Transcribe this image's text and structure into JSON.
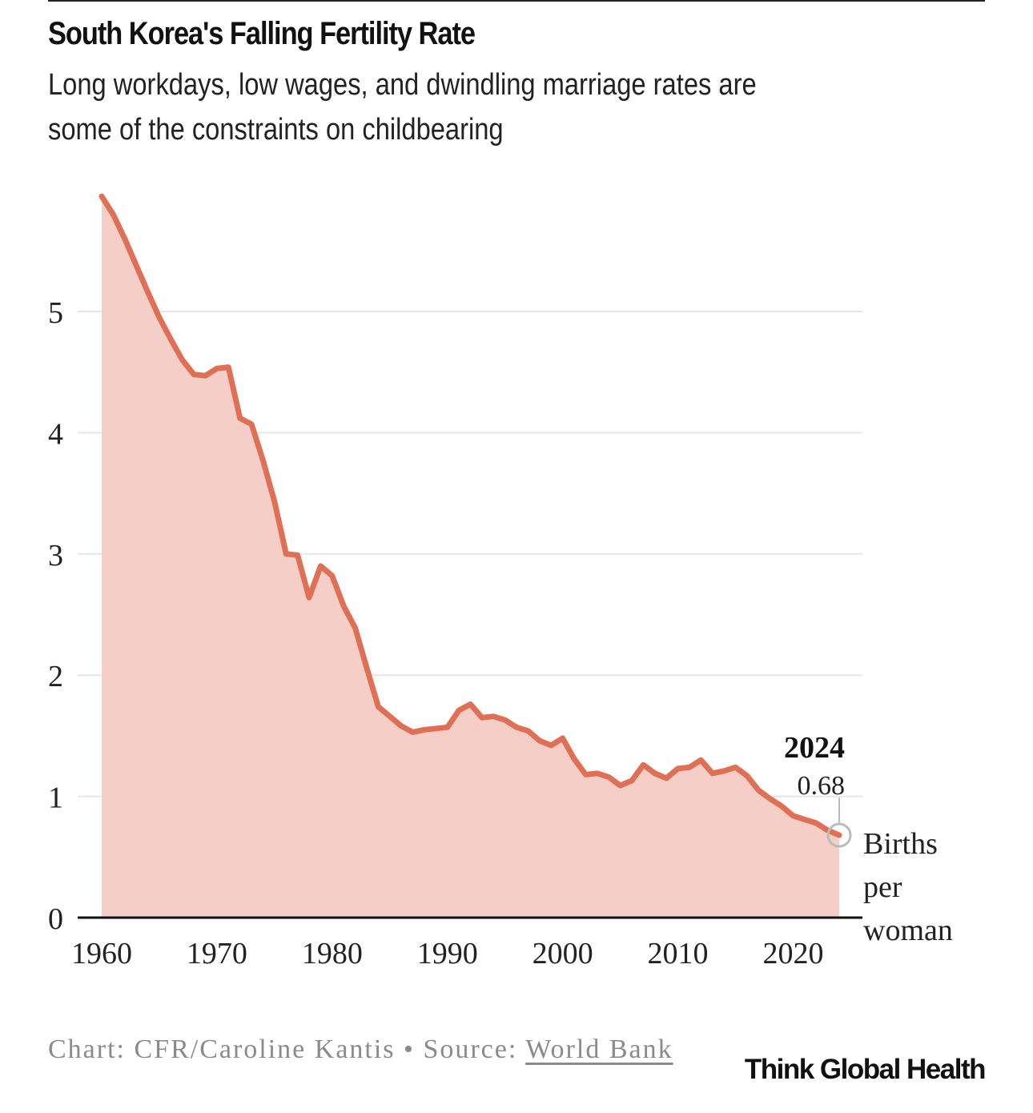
{
  "header": {
    "title": "South Korea's Falling Fertility Rate",
    "subtitle_line1": "Long workdays, low wages, and dwindling marriage rates are",
    "subtitle_line2": "some of the constraints on childbearing"
  },
  "footer": {
    "credit_prefix": "Chart: CFR/Caroline Kantis • Source: ",
    "source_link": "World Bank",
    "brand": "Think Global Health"
  },
  "colors": {
    "line": "#e07055",
    "area": "#f5cfc7",
    "grid": "#e6e6e6",
    "axis": "#111111"
  },
  "chart_data": {
    "type": "area",
    "title": "South Korea's Falling Fertility Rate",
    "ylabel": "Births per woman",
    "xlim": [
      1960,
      2024
    ],
    "ylim": [
      0,
      5.8
    ],
    "grid": true,
    "x_ticks": [
      1960,
      1970,
      1980,
      1990,
      2000,
      2010,
      2020
    ],
    "y_ticks": [
      0,
      1,
      2,
      3,
      4,
      5
    ],
    "annotation": {
      "label": "2024",
      "value": "0.68",
      "x": 2024,
      "y": 0.68
    },
    "series": [
      {
        "x": [
          1960,
          1961,
          1962,
          1963,
          1964,
          1965,
          1966,
          1967,
          1968,
          1969,
          1970,
          1971,
          1972,
          1973,
          1974,
          1975,
          1976,
          1977,
          1978,
          1979,
          1980,
          1981,
          1982,
          1983,
          1984,
          1985,
          1986,
          1987,
          1988,
          1989,
          1990,
          1991,
          1992,
          1993,
          1994,
          1995,
          1996,
          1997,
          1998,
          1999,
          2000,
          2001,
          2002,
          2003,
          2004,
          2005,
          2006,
          2007,
          2008,
          2009,
          2010,
          2011,
          2012,
          2013,
          2014,
          2015,
          2016,
          2017,
          2018,
          2019,
          2020,
          2021,
          2022,
          2023,
          2024
        ],
        "values": [
          5.95,
          5.8,
          5.6,
          5.38,
          5.16,
          4.95,
          4.77,
          4.6,
          4.48,
          4.47,
          4.53,
          4.54,
          4.12,
          4.07,
          3.77,
          3.43,
          3.0,
          2.99,
          2.64,
          2.9,
          2.82,
          2.57,
          2.39,
          2.06,
          1.74,
          1.66,
          1.58,
          1.53,
          1.55,
          1.56,
          1.57,
          1.71,
          1.76,
          1.65,
          1.66,
          1.63,
          1.57,
          1.54,
          1.46,
          1.42,
          1.48,
          1.31,
          1.18,
          1.19,
          1.16,
          1.09,
          1.13,
          1.26,
          1.19,
          1.15,
          1.23,
          1.24,
          1.3,
          1.19,
          1.21,
          1.24,
          1.17,
          1.05,
          0.98,
          0.92,
          0.84,
          0.81,
          0.78,
          0.72,
          0.68
        ]
      }
    ],
    "unit_label_lines": [
      "Births",
      "per",
      "woman"
    ]
  }
}
